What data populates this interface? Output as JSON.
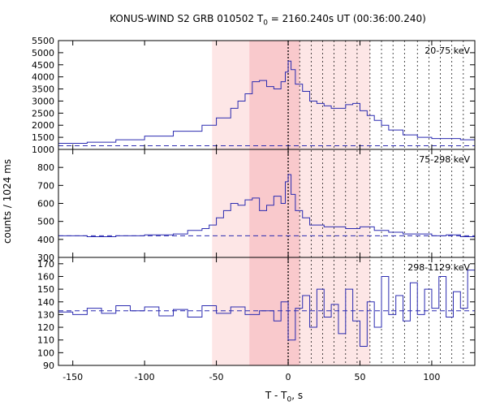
{
  "title": {
    "prefix": "KONUS-WIND S2 GRB 010502 T",
    "sub": "0",
    "suffix": " = 2160.240s UT (00:36:00.240)"
  },
  "ylabel": "counts / 1024 ms",
  "xlabel": {
    "prefix": "T - T",
    "sub": "0",
    "suffix": ", s"
  },
  "chart_data": [
    {
      "type": "line",
      "name": "20-75 keV",
      "xlim": [
        -160,
        130
      ],
      "ylim": [
        1000,
        5500
      ],
      "yticks": [
        1000,
        1500,
        2000,
        2500,
        3000,
        3500,
        4000,
        4500,
        5000,
        5500
      ],
      "background": 1150,
      "x": [
        -160,
        -140,
        -120,
        -100,
        -80,
        -60,
        -50,
        -40,
        -35,
        -30,
        -25,
        -20,
        -15,
        -10,
        -5,
        -2,
        0,
        2,
        5,
        10,
        15,
        20,
        25,
        30,
        35,
        40,
        45,
        50,
        55,
        60,
        65,
        70,
        80,
        90,
        100,
        110,
        120,
        130
      ],
      "y": [
        1250,
        1300,
        1400,
        1550,
        1750,
        2000,
        2300,
        2700,
        3000,
        3300,
        3800,
        3850,
        3600,
        3500,
        3800,
        4200,
        4650,
        4300,
        3700,
        3400,
        3000,
        2900,
        2800,
        2700,
        2700,
        2850,
        2900,
        2600,
        2400,
        2200,
        2000,
        1800,
        1600,
        1500,
        1450,
        1450,
        1400,
        1400
      ]
    },
    {
      "type": "line",
      "name": "75-298 keV",
      "xlim": [
        -160,
        130
      ],
      "ylim": [
        300,
        900
      ],
      "yticks": [
        300,
        400,
        500,
        600,
        700,
        800
      ],
      "background": 420,
      "x": [
        -160,
        -140,
        -120,
        -100,
        -80,
        -70,
        -60,
        -55,
        -50,
        -45,
        -40,
        -35,
        -30,
        -25,
        -20,
        -15,
        -10,
        -5,
        -2,
        0,
        2,
        5,
        10,
        15,
        20,
        25,
        30,
        40,
        50,
        60,
        70,
        80,
        90,
        100,
        110,
        120,
        130
      ],
      "y": [
        420,
        415,
        420,
        425,
        430,
        450,
        460,
        480,
        520,
        560,
        600,
        590,
        620,
        630,
        560,
        590,
        640,
        600,
        720,
        760,
        650,
        560,
        520,
        480,
        480,
        470,
        470,
        460,
        470,
        450,
        440,
        430,
        430,
        420,
        425,
        415,
        410
      ]
    },
    {
      "type": "line",
      "name": "298-1129 keV",
      "xlim": [
        -160,
        130
      ],
      "ylim": [
        90,
        175
      ],
      "yticks": [
        90,
        100,
        110,
        120,
        130,
        140,
        150,
        160,
        170
      ],
      "background": 133,
      "x": [
        -160,
        -150,
        -140,
        -130,
        -120,
        -110,
        -100,
        -90,
        -80,
        -70,
        -60,
        -50,
        -40,
        -30,
        -20,
        -10,
        -5,
        0,
        5,
        10,
        15,
        20,
        25,
        30,
        35,
        40,
        45,
        50,
        55,
        60,
        65,
        70,
        75,
        80,
        85,
        90,
        95,
        100,
        105,
        110,
        115,
        120,
        125,
        130
      ],
      "y": [
        132,
        130,
        135,
        131,
        137,
        133,
        136,
        129,
        134,
        128,
        137,
        131,
        136,
        130,
        133,
        125,
        140,
        110,
        135,
        145,
        120,
        150,
        128,
        138,
        115,
        150,
        125,
        105,
        140,
        120,
        160,
        130,
        145,
        125,
        155,
        130,
        150,
        135,
        160,
        128,
        148,
        135,
        165,
        140
      ]
    }
  ],
  "xaxis": {
    "ticks": [
      -150,
      -100,
      -50,
      0,
      50,
      100
    ],
    "tick_labels": [
      "-150",
      "-100",
      "-50",
      "0",
      "50",
      "100"
    ]
  },
  "intervals": {
    "light_shade": [
      -53,
      57
    ],
    "dark_shade": [
      -27,
      8
    ],
    "dotted_lines": [
      0,
      8,
      16,
      24,
      32,
      40,
      48,
      57,
      65,
      73,
      81,
      90,
      98,
      106,
      114,
      122
    ]
  },
  "colors": {
    "series": "#2b2bb0",
    "background_line": "#2b2bb0",
    "light_shade": "#fde6e6",
    "dark_shade": "#f9c9cc",
    "axis": "#000000"
  }
}
